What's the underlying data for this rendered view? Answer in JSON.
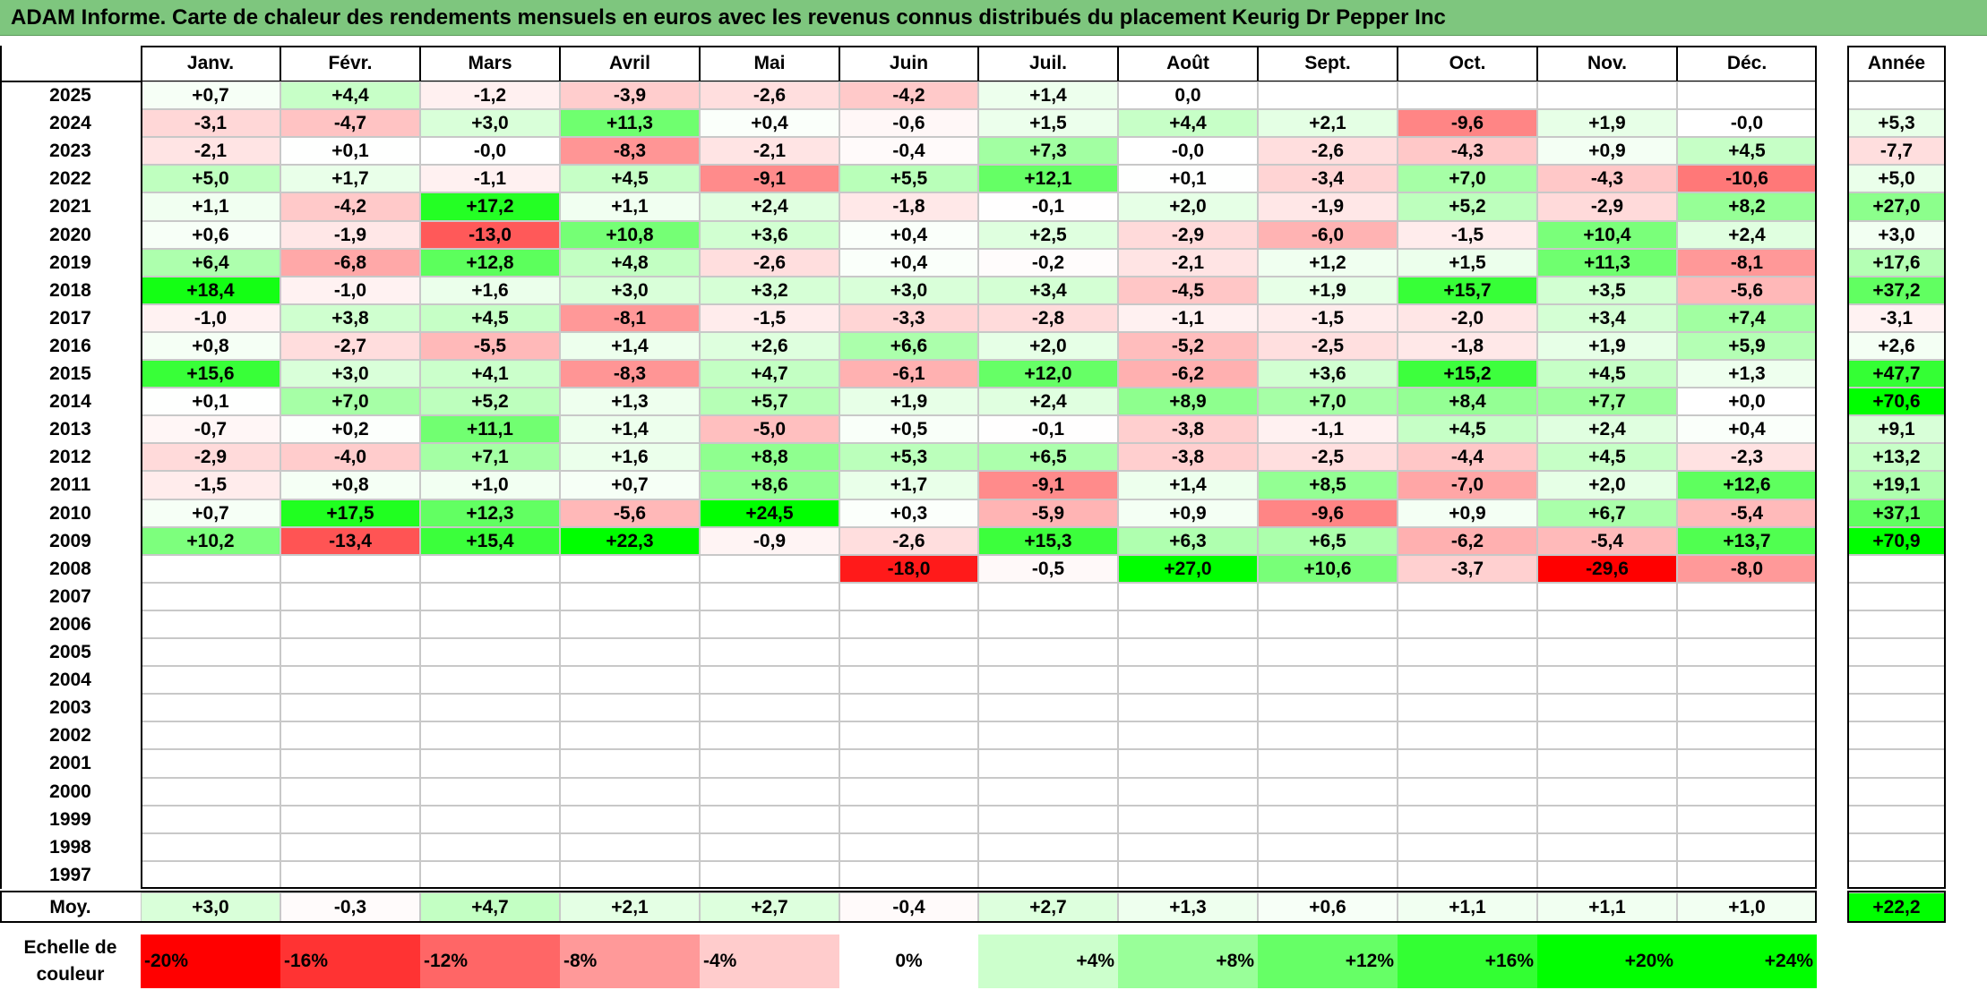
{
  "title": "ADAM Informe. Carte de chaleur des rendements mensuels en euros avec les revenus connus distribués du placement Keurig Dr Pepper Inc",
  "chart_data": {
    "type": "heatmap",
    "months": [
      "Janv.",
      "Févr.",
      "Mars",
      "Avril",
      "Mai",
      "Juin",
      "Juil.",
      "Août",
      "Sept.",
      "Oct.",
      "Nov.",
      "Déc."
    ],
    "year_header": "Année",
    "rows": [
      {
        "year": "2025",
        "values": [
          "+0,7",
          "+4,4",
          "-1,2",
          "-3,9",
          "-2,6",
          "-4,2",
          "+1,4",
          "0,0",
          "",
          "",
          "",
          ""
        ],
        "annual": ""
      },
      {
        "year": "2024",
        "values": [
          "-3,1",
          "-4,7",
          "+3,0",
          "+11,3",
          "+0,4",
          "-0,6",
          "+1,5",
          "+4,4",
          "+2,1",
          "-9,6",
          "+1,9",
          "-0,0"
        ],
        "annual": "+5,3"
      },
      {
        "year": "2023",
        "values": [
          "-2,1",
          "+0,1",
          "-0,0",
          "-8,3",
          "-2,1",
          "-0,4",
          "+7,3",
          "-0,0",
          "-2,6",
          "-4,3",
          "+0,9",
          "+4,5"
        ],
        "annual": "-7,7"
      },
      {
        "year": "2022",
        "values": [
          "+5,0",
          "+1,7",
          "-1,1",
          "+4,5",
          "-9,1",
          "+5,5",
          "+12,1",
          "+0,1",
          "-3,4",
          "+7,0",
          "-4,3",
          "-10,6"
        ],
        "annual": "+5,0"
      },
      {
        "year": "2021",
        "values": [
          "+1,1",
          "-4,2",
          "+17,2",
          "+1,1",
          "+2,4",
          "-1,8",
          "-0,1",
          "+2,0",
          "-1,9",
          "+5,2",
          "-2,9",
          "+8,2"
        ],
        "annual": "+27,0"
      },
      {
        "year": "2020",
        "values": [
          "+0,6",
          "-1,9",
          "-13,0",
          "+10,8",
          "+3,6",
          "+0,4",
          "+2,5",
          "-2,9",
          "-6,0",
          "-1,5",
          "+10,4",
          "+2,4"
        ],
        "annual": "+3,0"
      },
      {
        "year": "2019",
        "values": [
          "+6,4",
          "-6,8",
          "+12,8",
          "+4,8",
          "-2,6",
          "+0,4",
          "-0,2",
          "-2,1",
          "+1,2",
          "+1,5",
          "+11,3",
          "-8,1"
        ],
        "annual": "+17,6"
      },
      {
        "year": "2018",
        "values": [
          "+18,4",
          "-1,0",
          "+1,6",
          "+3,0",
          "+3,2",
          "+3,0",
          "+3,4",
          "-4,5",
          "+1,9",
          "+15,7",
          "+3,5",
          "-5,6"
        ],
        "annual": "+37,2"
      },
      {
        "year": "2017",
        "values": [
          "-1,0",
          "+3,8",
          "+4,5",
          "-8,1",
          "-1,5",
          "-3,3",
          "-2,8",
          "-1,1",
          "-1,5",
          "-2,0",
          "+3,4",
          "+7,4"
        ],
        "annual": "-3,1"
      },
      {
        "year": "2016",
        "values": [
          "+0,8",
          "-2,7",
          "-5,5",
          "+1,4",
          "+2,6",
          "+6,6",
          "+2,0",
          "-5,2",
          "-2,5",
          "-1,8",
          "+1,9",
          "+5,9"
        ],
        "annual": "+2,6"
      },
      {
        "year": "2015",
        "values": [
          "+15,6",
          "+3,0",
          "+4,1",
          "-8,3",
          "+4,7",
          "-6,1",
          "+12,0",
          "-6,2",
          "+3,6",
          "+15,2",
          "+4,5",
          "+1,3"
        ],
        "annual": "+47,7"
      },
      {
        "year": "2014",
        "values": [
          "+0,1",
          "+7,0",
          "+5,2",
          "+1,3",
          "+5,7",
          "+1,9",
          "+2,4",
          "+8,9",
          "+7,0",
          "+8,4",
          "+7,7",
          "+0,0"
        ],
        "annual": "+70,6"
      },
      {
        "year": "2013",
        "values": [
          "-0,7",
          "+0,2",
          "+11,1",
          "+1,4",
          "-5,0",
          "+0,5",
          "-0,1",
          "-3,8",
          "-1,1",
          "+4,5",
          "+2,4",
          "+0,4"
        ],
        "annual": "+9,1"
      },
      {
        "year": "2012",
        "values": [
          "-2,9",
          "-4,0",
          "+7,1",
          "+1,6",
          "+8,8",
          "+5,3",
          "+6,5",
          "-3,8",
          "-2,5",
          "-4,4",
          "+4,5",
          "-2,3"
        ],
        "annual": "+13,2"
      },
      {
        "year": "2011",
        "values": [
          "-1,5",
          "+0,8",
          "+1,0",
          "+0,7",
          "+8,6",
          "+1,7",
          "-9,1",
          "+1,4",
          "+8,5",
          "-7,0",
          "+2,0",
          "+12,6"
        ],
        "annual": "+19,1"
      },
      {
        "year": "2010",
        "values": [
          "+0,7",
          "+17,5",
          "+12,3",
          "-5,6",
          "+24,5",
          "+0,3",
          "-5,9",
          "+0,9",
          "-9,6",
          "+0,9",
          "+6,7",
          "-5,4"
        ],
        "annual": "+37,1"
      },
      {
        "year": "2009",
        "values": [
          "+10,2",
          "-13,4",
          "+15,4",
          "+22,3",
          "-0,9",
          "-2,6",
          "+15,3",
          "+6,3",
          "+6,5",
          "-6,2",
          "-5,4",
          "+13,7"
        ],
        "annual": "+70,9"
      },
      {
        "year": "2008",
        "values": [
          "",
          "",
          "",
          "",
          "",
          "-18,0",
          "-0,5",
          "+27,0",
          "+10,6",
          "-3,7",
          "-29,6",
          "-8,0"
        ],
        "annual": ""
      },
      {
        "year": "2007",
        "values": [
          "",
          "",
          "",
          "",
          "",
          "",
          "",
          "",
          "",
          "",
          "",
          ""
        ],
        "annual": ""
      },
      {
        "year": "2006",
        "values": [
          "",
          "",
          "",
          "",
          "",
          "",
          "",
          "",
          "",
          "",
          "",
          ""
        ],
        "annual": ""
      },
      {
        "year": "2005",
        "values": [
          "",
          "",
          "",
          "",
          "",
          "",
          "",
          "",
          "",
          "",
          "",
          ""
        ],
        "annual": ""
      },
      {
        "year": "2004",
        "values": [
          "",
          "",
          "",
          "",
          "",
          "",
          "",
          "",
          "",
          "",
          "",
          ""
        ],
        "annual": ""
      },
      {
        "year": "2003",
        "values": [
          "",
          "",
          "",
          "",
          "",
          "",
          "",
          "",
          "",
          "",
          "",
          ""
        ],
        "annual": ""
      },
      {
        "year": "2002",
        "values": [
          "",
          "",
          "",
          "",
          "",
          "",
          "",
          "",
          "",
          "",
          "",
          ""
        ],
        "annual": ""
      },
      {
        "year": "2001",
        "values": [
          "",
          "",
          "",
          "",
          "",
          "",
          "",
          "",
          "",
          "",
          "",
          ""
        ],
        "annual": ""
      },
      {
        "year": "2000",
        "values": [
          "",
          "",
          "",
          "",
          "",
          "",
          "",
          "",
          "",
          "",
          "",
          ""
        ],
        "annual": ""
      },
      {
        "year": "1999",
        "values": [
          "",
          "",
          "",
          "",
          "",
          "",
          "",
          "",
          "",
          "",
          "",
          ""
        ],
        "annual": ""
      },
      {
        "year": "1998",
        "values": [
          "",
          "",
          "",
          "",
          "",
          "",
          "",
          "",
          "",
          "",
          "",
          ""
        ],
        "annual": ""
      },
      {
        "year": "1997",
        "values": [
          "",
          "",
          "",
          "",
          "",
          "",
          "",
          "",
          "",
          "",
          "",
          ""
        ],
        "annual": ""
      }
    ],
    "average": {
      "label": "Moy.",
      "values": [
        "+3,0",
        "-0,3",
        "+4,7",
        "+2,1",
        "+2,7",
        "-0,4",
        "+2,7",
        "+1,3",
        "+0,6",
        "+1,1",
        "+1,1",
        "+1,0"
      ],
      "annual": "+22,2"
    },
    "scale": {
      "label": "Echelle de couleur",
      "steps": [
        {
          "text": "-20%",
          "value": -20
        },
        {
          "text": "-16%",
          "value": -16
        },
        {
          "text": "-12%",
          "value": -12
        },
        {
          "text": "-8%",
          "value": -8
        },
        {
          "text": "-4%",
          "value": -4
        },
        {
          "text": "0%",
          "value": 0
        },
        {
          "text": "+4%",
          "value": 4
        },
        {
          "text": "+8%",
          "value": 8
        },
        {
          "text": "+12%",
          "value": 12
        },
        {
          "text": "+16%",
          "value": 16
        },
        {
          "text": "+20%",
          "value": 20
        },
        {
          "text": "+24%",
          "value": 24
        }
      ]
    },
    "colors": {
      "negative": "#ff0000",
      "neutral": "#ffffff",
      "positive": "#00ff00",
      "title_bar": "#7ec67e"
    }
  }
}
